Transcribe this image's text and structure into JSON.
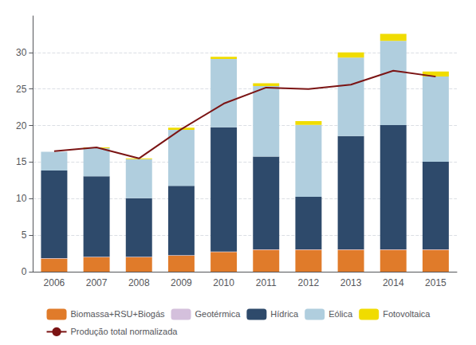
{
  "chart_data": {
    "type": "bar",
    "stacked": true,
    "grid": true,
    "legend": "bottom",
    "categories": [
      "2006",
      "2007",
      "2008",
      "2009",
      "2010",
      "2011",
      "2012",
      "2013",
      "2014",
      "2015"
    ],
    "series": [
      {
        "name": "Biomassa+RSU+Biogás",
        "type": "bar",
        "color": "#E07B2A",
        "values": [
          1.8,
          2.0,
          2.0,
          2.2,
          2.7,
          3.0,
          3.0,
          3.0,
          3.0,
          3.0
        ]
      },
      {
        "name": "Geotérmica",
        "type": "bar",
        "color": "#D4C0DC",
        "values": [
          0.05,
          0.05,
          0.05,
          0.05,
          0.05,
          0.05,
          0.05,
          0.05,
          0.05,
          0.05
        ]
      },
      {
        "name": "Hídrica",
        "type": "bar",
        "color": "#2E4A6B",
        "values": [
          12.0,
          11.0,
          8.0,
          9.5,
          17.0,
          12.7,
          7.2,
          15.5,
          17.0,
          12.0
        ]
      },
      {
        "name": "Eólica",
        "type": "bar",
        "color": "#B0CEDE",
        "values": [
          2.55,
          3.85,
          5.35,
          7.65,
          9.35,
          9.65,
          9.85,
          10.75,
          11.55,
          11.65
        ]
      },
      {
        "name": "Fotovoltaica",
        "type": "bar",
        "color": "#F0DC00",
        "values": [
          0.0,
          0.1,
          0.1,
          0.3,
          0.3,
          0.4,
          0.5,
          0.7,
          0.95,
          0.7
        ]
      },
      {
        "name": "Produção total normalizada",
        "type": "line",
        "color": "#7B1414",
        "values": [
          16.5,
          17.0,
          15.5,
          19.5,
          23.0,
          25.2,
          25.0,
          25.6,
          27.5,
          26.7
        ]
      }
    ],
    "ylim": [
      0,
      35
    ],
    "yticks": [
      0,
      5,
      10,
      15,
      20,
      25,
      30
    ]
  }
}
